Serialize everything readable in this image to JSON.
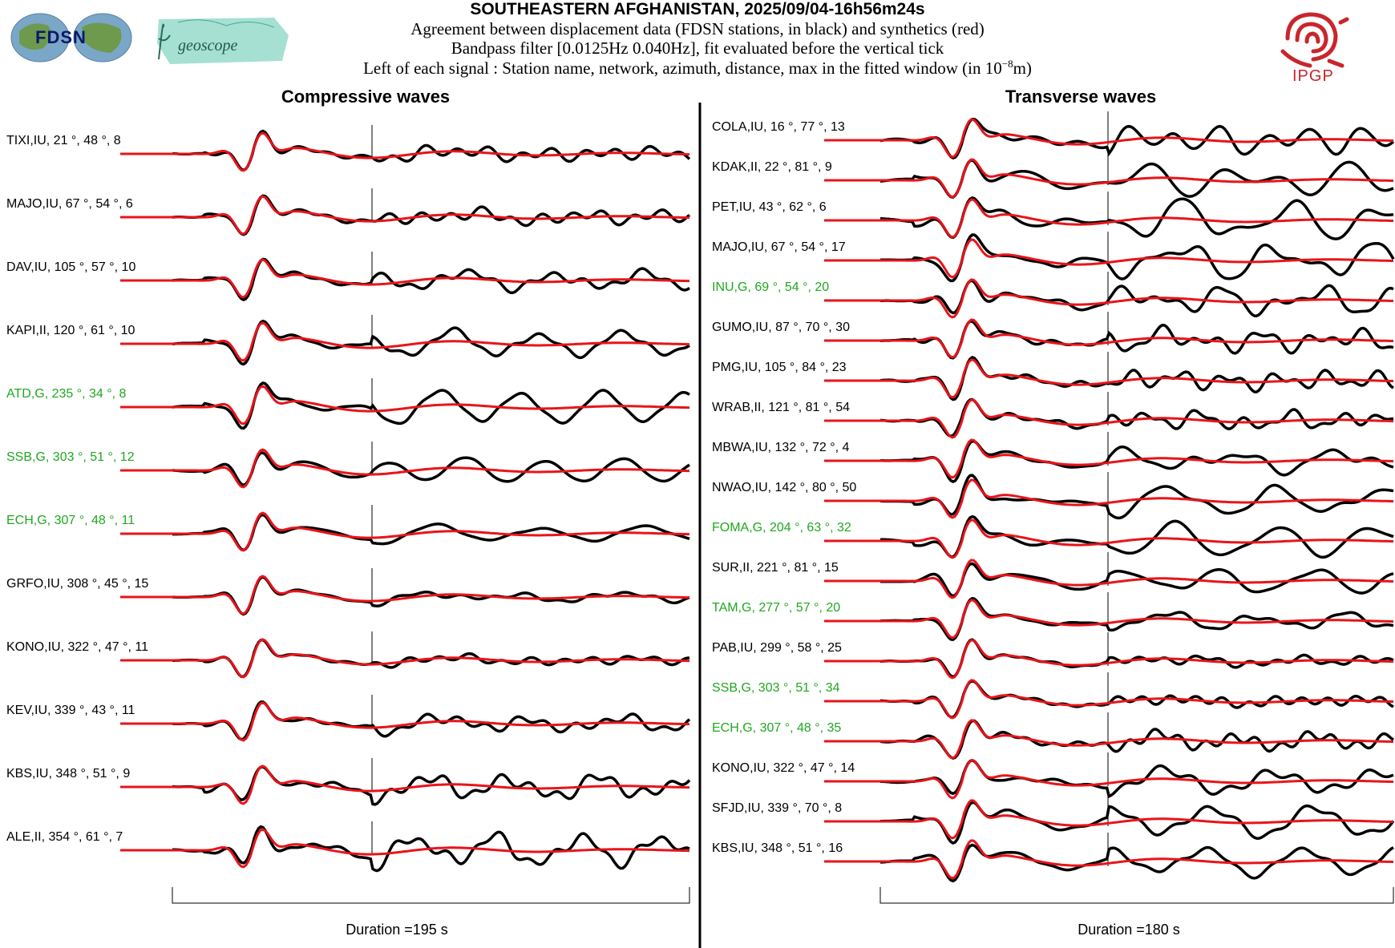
{
  "header": {
    "title": "SOUTHEASTERN AFGHANISTAN, 2025/09/04-16h56m24s",
    "line1": "Agreement between displacement data (FDSN stations, in black) and synthetics (red)",
    "line2": "Bandpass filter [0.0125Hz 0.040Hz], fit evaluated before the vertical tick",
    "line3_prefix": "Left of each signal : Station name, network, azimuth, distance, max in the fitted window (in 10",
    "line3_exp": "−8",
    "line3_suffix": "m)"
  },
  "logos": {
    "fdsn": "FDSN",
    "geoscope": "geoscope",
    "ipgp": "IPGP"
  },
  "colors": {
    "data": "#000000",
    "synthetic": "#e8141a",
    "green_station": "#1fa81f",
    "label_default": "#000000",
    "fdsn_blue": "#0a1a6a",
    "geoscope_teal": "#7fcfc0",
    "ipgp_red": "#c8262c"
  },
  "chart_data": [
    {
      "type": "line",
      "title": "Compressive waves",
      "duration_label": "Duration =195 s",
      "series_legend": [
        "data (black)",
        "synthetics (red)"
      ],
      "stations": [
        {
          "label": "TIXI,IU, 21 °, 48 °, 8",
          "green": false
        },
        {
          "label": "MAJO,IU, 67 °, 54 °, 6",
          "green": false
        },
        {
          "label": "DAV,IU, 105 °, 57 °, 10",
          "green": false
        },
        {
          "label": "KAPI,II, 120 °, 61 °, 10",
          "green": false
        },
        {
          "label": "ATD,G, 235 °, 34 °, 8",
          "green": true
        },
        {
          "label": "SSB,G, 303 °, 51 °, 12",
          "green": true
        },
        {
          "label": "ECH,G, 307 °, 48 °, 11",
          "green": true
        },
        {
          "label": "GRFO,IU, 308 °, 45 °, 15",
          "green": false
        },
        {
          "label": "KONO,IU, 322 °, 47 °, 11",
          "green": false
        },
        {
          "label": "KEV,IU, 339 °, 43 °, 11",
          "green": false
        },
        {
          "label": "KBS,IU, 348 °, 51 °, 9",
          "green": false
        },
        {
          "label": "ALE,II, 354 °, 61 °, 7",
          "green": false
        }
      ]
    },
    {
      "type": "line",
      "title": "Transverse waves",
      "duration_label": "Duration =180 s",
      "series_legend": [
        "data (black)",
        "synthetics (red)"
      ],
      "stations": [
        {
          "label": "COLA,IU, 16 °, 77 °, 13",
          "green": false
        },
        {
          "label": "KDAK,II, 22 °, 81 °, 9",
          "green": false
        },
        {
          "label": "PET,IU, 43 °, 62 °, 6",
          "green": false
        },
        {
          "label": "MAJO,IU, 67 °, 54 °, 17",
          "green": false
        },
        {
          "label": "INU,G, 69 °, 54 °, 20",
          "green": true
        },
        {
          "label": "GUMO,IU, 87 °, 70 °, 30",
          "green": false
        },
        {
          "label": "PMG,IU, 105 °, 84 °, 23",
          "green": false
        },
        {
          "label": "WRAB,II, 121 °, 81 °, 54",
          "green": false
        },
        {
          "label": "MBWA,IU, 132 °, 72 °, 4",
          "green": false
        },
        {
          "label": "NWAO,IU, 142 °, 80 °, 50",
          "green": false
        },
        {
          "label": "FOMA,G, 204 °, 63 °, 32",
          "green": true
        },
        {
          "label": "SUR,II, 221 °, 81 °, 15",
          "green": false
        },
        {
          "label": "TAM,G, 277 °, 57 °, 20",
          "green": true
        },
        {
          "label": "PAB,IU, 299 °, 58 °, 25",
          "green": false
        },
        {
          "label": "SSB,G, 303 °, 51 °, 34",
          "green": true
        },
        {
          "label": "ECH,G, 307 °, 48 °, 35",
          "green": true
        },
        {
          "label": "KONO,IU, 322 °, 47 °, 14",
          "green": false
        },
        {
          "label": "SFJD,IU, 339 °, 70 °, 8",
          "green": false
        },
        {
          "label": "KBS,IU, 348 °, 51 °, 16",
          "green": false
        }
      ]
    }
  ]
}
